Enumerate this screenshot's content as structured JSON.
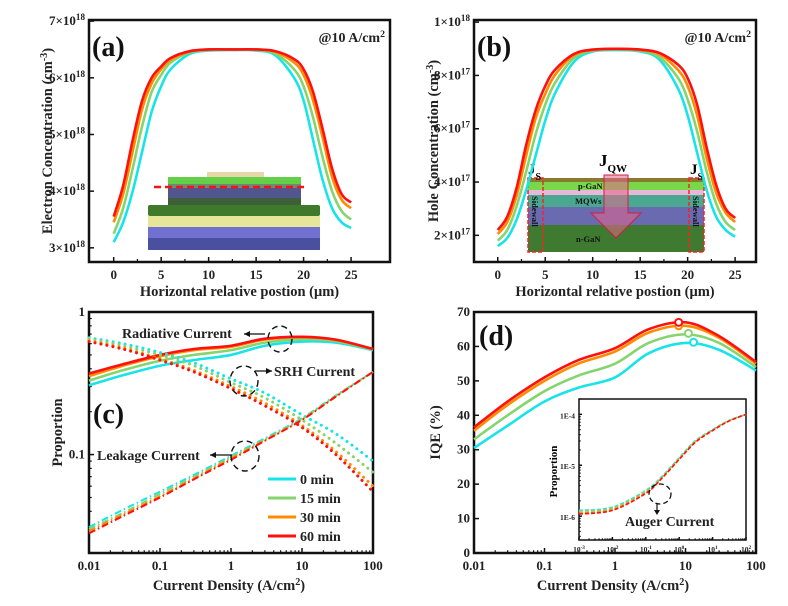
{
  "colors": {
    "0 min": "#18e4e8",
    "15 min": "#86d46e",
    "30 min": "#ff8c00",
    "60 min": "#ff1010"
  },
  "legend": {
    "items": [
      "0 min",
      "15 min",
      "30 min",
      "60 min"
    ],
    "placement": "bottom-right of panel (c)"
  },
  "schematic_a": {
    "description_marks": "device-cross-section-with-red-dashed-cut-line"
  },
  "schematic_b": {
    "p_layer": "p-GaN",
    "mqw_layer": "MQWs",
    "n_layer": "n-GaN",
    "sidewall": "Sidewall",
    "js": {
      "base": "J",
      "sub": "S"
    },
    "jqw": {
      "base": "J",
      "sub": "QW"
    }
  },
  "chart_data": [
    {
      "panel": "(a)",
      "type": "line",
      "annotation": "@10 A/cm^{2}",
      "xlabel": "Horizontal relative postion (μm)",
      "ylabel": "Electron Concentration (cm^{-3})",
      "xlim": [
        -2.6,
        29.1
      ],
      "ylim": [
        2.75e+18,
        7.02e+18
      ],
      "xscale": "linear",
      "yscale": "linear",
      "xticks": [
        0,
        5,
        10,
        15,
        20,
        25
      ],
      "xtick_labels": [
        "0",
        "5",
        "10",
        "15",
        "20",
        "25"
      ],
      "yticks": [
        3e+18,
        4e+18,
        5e+18,
        6e+18,
        7e+18
      ],
      "ytick_labels": [
        "3×10^{18}",
        "4×10^{18}",
        "5×10^{18}",
        "6×10^{18}",
        "7×10^{18}"
      ],
      "x": [
        0,
        1,
        2,
        3,
        4,
        5,
        6,
        8,
        10,
        12.5,
        15,
        17,
        19,
        20,
        21,
        22,
        23,
        24,
        25
      ],
      "series": [
        {
          "name": "0 min",
          "values": [
            3.1e+18,
            3.45e+18,
            4e+18,
            4.7e+18,
            5.4e+18,
            5.85e+18,
            6.15e+18,
            6.42e+18,
            6.48e+18,
            6.49e+18,
            6.48e+18,
            6.4e+18,
            6e+18,
            5.6e+18,
            4.9e+18,
            4.2e+18,
            3.7e+18,
            3.45e+18,
            3.35e+18
          ]
        },
        {
          "name": "15 min",
          "values": [
            3.25e+18,
            3.7e+18,
            4.4e+18,
            5.15e+18,
            5.75e+18,
            6.05e+18,
            6.27e+18,
            6.45e+18,
            6.49e+18,
            6.5e+18,
            6.49e+18,
            6.43e+18,
            6.15e+18,
            5.85e+18,
            5.3e+18,
            4.6e+18,
            4e+18,
            3.65e+18,
            3.5e+18
          ]
        },
        {
          "name": "30 min",
          "values": [
            3.45e+18,
            3.95e+18,
            4.7e+18,
            5.45e+18,
            5.9e+18,
            6.15e+18,
            6.32e+18,
            6.46e+18,
            6.5e+18,
            6.5e+18,
            6.5e+18,
            6.46e+18,
            6.27e+18,
            6.05e+18,
            5.6e+18,
            4.95e+18,
            4.25e+18,
            3.85e+18,
            3.7e+18
          ]
        },
        {
          "name": "60 min",
          "values": [
            3.55e+18,
            4.1e+18,
            4.9e+18,
            5.6e+18,
            6e+18,
            6.2e+18,
            6.35e+18,
            6.47e+18,
            6.5e+18,
            6.5e+18,
            6.5e+18,
            6.47e+18,
            6.33e+18,
            6.15e+18,
            5.75e+18,
            5.1e+18,
            4.4e+18,
            3.95e+18,
            3.8e+18
          ]
        }
      ]
    },
    {
      "panel": "(b)",
      "type": "line",
      "annotation": "@10 A/cm^{2}",
      "xlabel": "Horizontal relative postion (μm)",
      "ylabel": "Hole Concentration (cm^{-3})",
      "xlim": [
        -2.5,
        27.2
      ],
      "ylim": [
        1e+17,
        1.008e+18
      ],
      "xscale": "linear",
      "yscale": "linear",
      "xticks": [
        0,
        5,
        10,
        15,
        20,
        25
      ],
      "xtick_labels": [
        "0",
        "5",
        "10",
        "15",
        "20",
        "25"
      ],
      "yticks": [
        2e+17,
        4e+17,
        6e+17,
        8e+17,
        1e+18
      ],
      "ytick_labels": [
        "2×10^{17}",
        "4×10^{17}",
        "6×10^{17}",
        "8×10^{17}",
        "1×10^{18}"
      ],
      "x": [
        0,
        1,
        2,
        3,
        4,
        5,
        6,
        8,
        10,
        12.5,
        15,
        17,
        19,
        20,
        21,
        22,
        23,
        24,
        25
      ],
      "series": [
        {
          "name": "0 min",
          "values": [
            1.6e+17,
            1.9e+17,
            2.6e+17,
            3.7e+17,
            5e+17,
            6.3e+17,
            7.3e+17,
            8.5e+17,
            8.9e+17,
            8.95e+17,
            8.9e+17,
            8.6e+17,
            7.5e+17,
            6.5e+17,
            5.1e+17,
            3.7e+17,
            2.7e+17,
            2.2e+17,
            1.95e+17
          ]
        },
        {
          "name": "15 min",
          "values": [
            1.8e+17,
            2.2e+17,
            3.1e+17,
            4.4e+17,
            5.8e+17,
            6.9e+17,
            7.7e+17,
            8.65e+17,
            8.93e+17,
            8.98e+17,
            8.93e+17,
            8.7e+17,
            7.9e+17,
            7.1e+17,
            5.9e+17,
            4.4e+17,
            3.2e+17,
            2.5e+17,
            2.2e+17
          ]
        },
        {
          "name": "30 min",
          "values": [
            2.05e+17,
            2.5e+17,
            3.5e+17,
            5e+17,
            6.4e+17,
            7.3e+17,
            8e+17,
            8.75e+17,
            8.95e+17,
            9e+17,
            8.95e+17,
            8.8e+17,
            8.2e+17,
            7.6e+17,
            6.5e+17,
            4.9e+17,
            3.6e+17,
            2.85e+17,
            2.5e+17
          ]
        },
        {
          "name": "60 min",
          "values": [
            2.2e+17,
            2.7e+17,
            3.8e+17,
            5.4e+17,
            6.7e+17,
            7.6e+17,
            8.2e+17,
            8.8e+17,
            8.97e+17,
            9e+17,
            8.97e+17,
            8.85e+17,
            8.4e+17,
            7.9e+17,
            6.9e+17,
            5.3e+17,
            3.9e+17,
            3e+17,
            2.65e+17
          ]
        }
      ]
    },
    {
      "panel": "(c)",
      "type": "line",
      "xlabel": "Current Density (A/cm^{2})",
      "ylabel": "Proportion",
      "xlim": [
        0.01,
        100
      ],
      "ylim": [
        0.0204,
        1
      ],
      "xscale": "log",
      "yscale": "log",
      "xticks": [
        0.01,
        0.1,
        1,
        10,
        100
      ],
      "xtick_labels": [
        "0.01",
        "0.1",
        "1",
        "10",
        "100"
      ],
      "yticks": [
        0.1,
        1
      ],
      "ytick_labels": [
        "0.1",
        "1"
      ],
      "annotations": {
        "radiative": "Radiative Current",
        "srh": "SRH Current",
        "leakage": "Leakage Current"
      },
      "x": [
        0.01,
        0.03,
        0.1,
        0.3,
        1,
        3,
        10,
        30,
        100
      ],
      "groups": [
        {
          "label": "Radiative Current",
          "style": "solid",
          "series": [
            {
              "name": "0 min",
              "values": [
                0.306,
                0.36,
                0.42,
                0.46,
                0.5,
                0.58,
                0.62,
                0.61,
                0.54
              ]
            },
            {
              "name": "15 min",
              "values": [
                0.33,
                0.39,
                0.455,
                0.5,
                0.54,
                0.61,
                0.645,
                0.625,
                0.545
              ]
            },
            {
              "name": "30 min",
              "values": [
                0.355,
                0.42,
                0.49,
                0.54,
                0.57,
                0.64,
                0.665,
                0.635,
                0.55
              ]
            },
            {
              "name": "60 min",
              "values": [
                0.37,
                0.43,
                0.5,
                0.55,
                0.58,
                0.65,
                0.67,
                0.64,
                0.55
              ]
            }
          ]
        },
        {
          "label": "SRH Current",
          "style": "dotted",
          "series": [
            {
              "name": "0 min",
              "values": [
                0.66,
                0.6,
                0.52,
                0.44,
                0.34,
                0.27,
                0.19,
                0.14,
                0.09
              ]
            },
            {
              "name": "15 min",
              "values": [
                0.65,
                0.58,
                0.5,
                0.42,
                0.32,
                0.25,
                0.175,
                0.12,
                0.075
              ]
            },
            {
              "name": "30 min",
              "values": [
                0.63,
                0.56,
                0.47,
                0.39,
                0.3,
                0.23,
                0.16,
                0.105,
                0.06
              ]
            },
            {
              "name": "60 min",
              "values": [
                0.62,
                0.55,
                0.46,
                0.38,
                0.29,
                0.22,
                0.155,
                0.1,
                0.055
              ]
            }
          ]
        },
        {
          "label": "Leakage Current",
          "style": "dash-dot",
          "series": [
            {
              "name": "0 min",
              "values": [
                0.031,
                0.041,
                0.055,
                0.072,
                0.098,
                0.13,
                0.18,
                0.26,
                0.38
              ]
            },
            {
              "name": "15 min",
              "values": [
                0.03,
                0.039,
                0.053,
                0.07,
                0.096,
                0.128,
                0.178,
                0.258,
                0.38
              ]
            },
            {
              "name": "30 min",
              "values": [
                0.029,
                0.038,
                0.051,
                0.068,
                0.094,
                0.126,
                0.176,
                0.256,
                0.38
              ]
            },
            {
              "name": "60 min",
              "values": [
                0.028,
                0.037,
                0.05,
                0.067,
                0.092,
                0.125,
                0.175,
                0.255,
                0.38
              ]
            }
          ]
        }
      ]
    },
    {
      "panel": "(d)",
      "type": "line",
      "xlabel": "Current Density (A/cm^{2})",
      "ylabel": "IQE (%)",
      "xlim": [
        0.01,
        100
      ],
      "ylim": [
        0,
        70
      ],
      "xscale": "log",
      "yscale": "linear",
      "xticks": [
        0.01,
        0.1,
        1,
        10,
        100
      ],
      "xtick_labels": [
        "0.01",
        "0.1",
        "1",
        "10",
        "100"
      ],
      "yticks": [
        0,
        10,
        20,
        30,
        40,
        50,
        60,
        70
      ],
      "ytick_labels": [
        "0",
        "10",
        "20",
        "30",
        "40",
        "50",
        "60",
        "70"
      ],
      "x": [
        0.01,
        0.03,
        0.1,
        0.3,
        1,
        3,
        10,
        30,
        100
      ],
      "series": [
        {
          "name": "0 min",
          "values": [
            30.5,
            37,
            44,
            48,
            51,
            58,
            61,
            59,
            53
          ],
          "peak": [
            13,
            61.2
          ]
        },
        {
          "name": "15 min",
          "values": [
            33,
            40,
            47,
            51.5,
            55,
            61,
            63.5,
            61,
            54
          ],
          "peak": [
            11,
            63.8
          ]
        },
        {
          "name": "30 min",
          "values": [
            35.5,
            43,
            50,
            55,
            58.5,
            64,
            66,
            62.5,
            55
          ],
          "peak": [
            8,
            66
          ]
        },
        {
          "name": "60 min",
          "values": [
            36.5,
            44,
            51,
            56,
            59.5,
            65,
            67,
            63,
            55.5
          ],
          "peak": [
            8,
            67
          ]
        }
      ],
      "inset": {
        "type": "line",
        "ylabel": "Proportion",
        "annotation": "Auger Current",
        "xlim": [
          0.001,
          100
        ],
        "ylim": [
          3.4e-07,
          0.0002
        ],
        "xscale": "log",
        "yscale": "log",
        "xticks": [
          0.001,
          0.01,
          0.1,
          1,
          10,
          100
        ],
        "xtick_labels": [
          "10^{-3}",
          "10^{-2}",
          "10^{-1}",
          "10^{0}",
          "10^{1}",
          "10^{2}"
        ],
        "yticks": [
          1e-06,
          1e-05,
          0.0001
        ],
        "ytick_labels": [
          "1E-6",
          "1E-5",
          "1E-4"
        ],
        "x": [
          0.001,
          0.01,
          0.1,
          0.3,
          1,
          3,
          10,
          30,
          100
        ],
        "series": [
          {
            "name": "0 min",
            "values": [
              1.3e-06,
              1.5e-06,
              3.2e-06,
              6e-06,
              1.4e-05,
              3e-05,
              5e-05,
              7.5e-05,
              0.0001
            ]
          },
          {
            "name": "15 min",
            "values": [
              1.25e-06,
              1.45e-06,
              3.1e-06,
              5.8e-06,
              1.37e-05,
              2.95e-05,
              4.95e-05,
              7.45e-05,
              0.0001
            ]
          },
          {
            "name": "30 min",
            "values": [
              1.15e-06,
              1.35e-06,
              2.9e-06,
              5.6e-06,
              1.33e-05,
              2.85e-05,
              4.85e-05,
              7.35e-05,
              0.0001
            ]
          },
          {
            "name": "60 min",
            "values": [
              1.1e-06,
              1.3e-06,
              2.8e-06,
              5.5e-06,
              1.3e-05,
              2.8e-05,
              4.8e-05,
              7.3e-05,
              0.0001
            ]
          }
        ]
      }
    }
  ]
}
